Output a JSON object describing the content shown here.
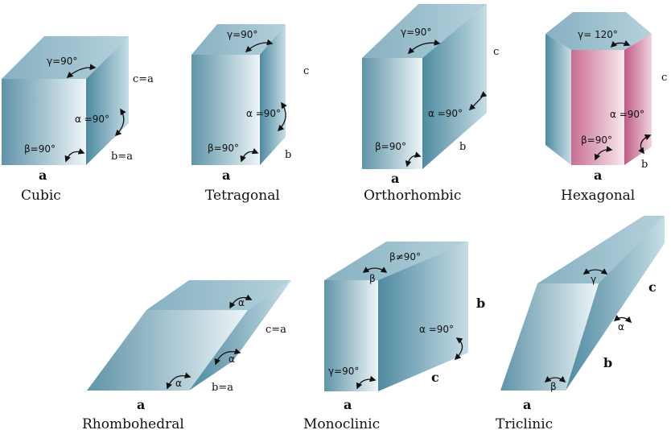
{
  "colors": {
    "front_dark": "#5f94a8",
    "front_light": "#eef5f8",
    "side_dark": "#4f8aa0",
    "side_light": "#c6dde6",
    "top": "#8fb8c8",
    "hex_front_dark": "#c96e92",
    "hex_front_light": "#f7e8ee"
  },
  "cubic": {
    "name": "Cubic",
    "edge_a": "a",
    "edge_b": "b=a",
    "edge_c": "c=a",
    "gamma": "γ=90°",
    "alpha": "α =90°",
    "beta": "β=90°"
  },
  "tetragonal": {
    "name": "Tetragonal",
    "edge_a": "a",
    "edge_b": "b",
    "edge_c": "c",
    "gamma": "γ=90°",
    "alpha": "α =90°",
    "beta": "β=90°"
  },
  "orthorhombic": {
    "name": "Orthorhombic",
    "edge_a": "a",
    "edge_b": "b",
    "edge_c": "c",
    "gamma": "γ=90°",
    "alpha": "α =90°",
    "beta": "β=90°"
  },
  "hexagonal": {
    "name": "Hexagonal",
    "edge_a": "a",
    "edge_b": "b",
    "edge_c": "c",
    "gamma": "γ= 120°",
    "alpha": "α =90°",
    "beta": "β=90°"
  },
  "rhombohedral": {
    "name": "Rhombohedral",
    "edge_a": "a",
    "edge_b": "b=a",
    "edge_c": "c=a",
    "alpha_1": "α",
    "alpha_2": "α",
    "alpha_3": "α"
  },
  "monoclinic": {
    "name": "Monoclinic",
    "edge_a": "a",
    "edge_b": "b",
    "edge_c": "c",
    "beta_label": "β≠90°",
    "beta_symbol": "β",
    "alpha": "α =90°",
    "gamma": "γ=90°"
  },
  "triclinic": {
    "name": "Triclinic",
    "edge_a": "a",
    "edge_b": "b",
    "edge_c": "c",
    "gamma": "γ",
    "alpha": "α",
    "beta": "β"
  }
}
